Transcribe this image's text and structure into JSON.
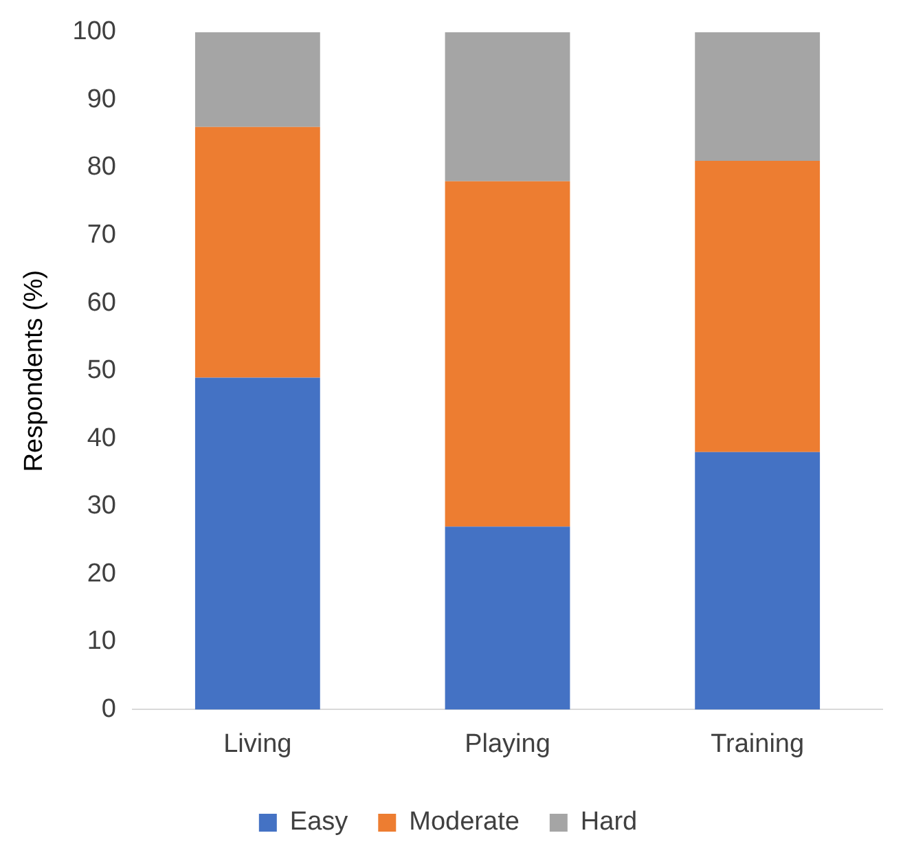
{
  "chart_data": {
    "type": "bar",
    "ylabel": "Respondents (%)",
    "categories": [
      "Living",
      "Playing",
      "Training"
    ],
    "stacked": true,
    "series": [
      {
        "name": "Easy",
        "color": "#4472c4",
        "values": [
          49,
          27,
          38
        ]
      },
      {
        "name": "Moderate",
        "color": "#ed7d31",
        "values": [
          37,
          51,
          43
        ]
      },
      {
        "name": "Hard",
        "color": "#a5a5a5",
        "values": [
          14,
          22,
          19
        ]
      }
    ],
    "ylim": [
      0,
      100
    ],
    "yticks": [
      0,
      10,
      20,
      30,
      40,
      50,
      60,
      70,
      80,
      90,
      100
    ],
    "grid": false,
    "legend": "bottom"
  }
}
